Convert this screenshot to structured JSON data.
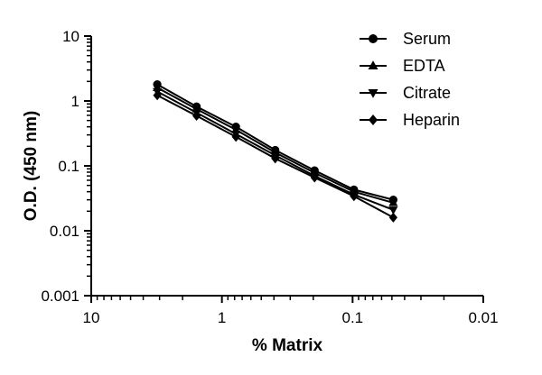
{
  "chart_data": {
    "type": "line",
    "xlabel": "% Matrix",
    "ylabel": "O.D. (450 nm)",
    "x_scale": "log",
    "y_scale": "log",
    "x_reversed": true,
    "xlim": [
      10,
      0.01
    ],
    "ylim": [
      0.001,
      10
    ],
    "x_ticks": [
      "10",
      "1",
      "0.1",
      "0.01"
    ],
    "y_ticks": [
      "10",
      "1",
      "0.1",
      "0.01",
      "0.001"
    ],
    "grid": false,
    "legend_position": "top-right",
    "x": [
      3.125,
      1.5625,
      0.78125,
      0.390625,
      0.1953125,
      0.09765625,
      0.048828125
    ],
    "series": [
      {
        "name": "Serum",
        "marker": "circle",
        "values": [
          1.8,
          0.82,
          0.4,
          0.175,
          0.085,
          0.043,
          0.03
        ]
      },
      {
        "name": "EDTA",
        "marker": "triangle-up",
        "values": [
          1.6,
          0.75,
          0.36,
          0.16,
          0.078,
          0.04,
          0.027
        ]
      },
      {
        "name": "Citrate",
        "marker": "triangle-down",
        "values": [
          1.4,
          0.66,
          0.31,
          0.145,
          0.07,
          0.036,
          0.021
        ]
      },
      {
        "name": "Heparin",
        "marker": "diamond",
        "values": [
          1.22,
          0.59,
          0.28,
          0.13,
          0.066,
          0.034,
          0.016
        ]
      }
    ]
  }
}
